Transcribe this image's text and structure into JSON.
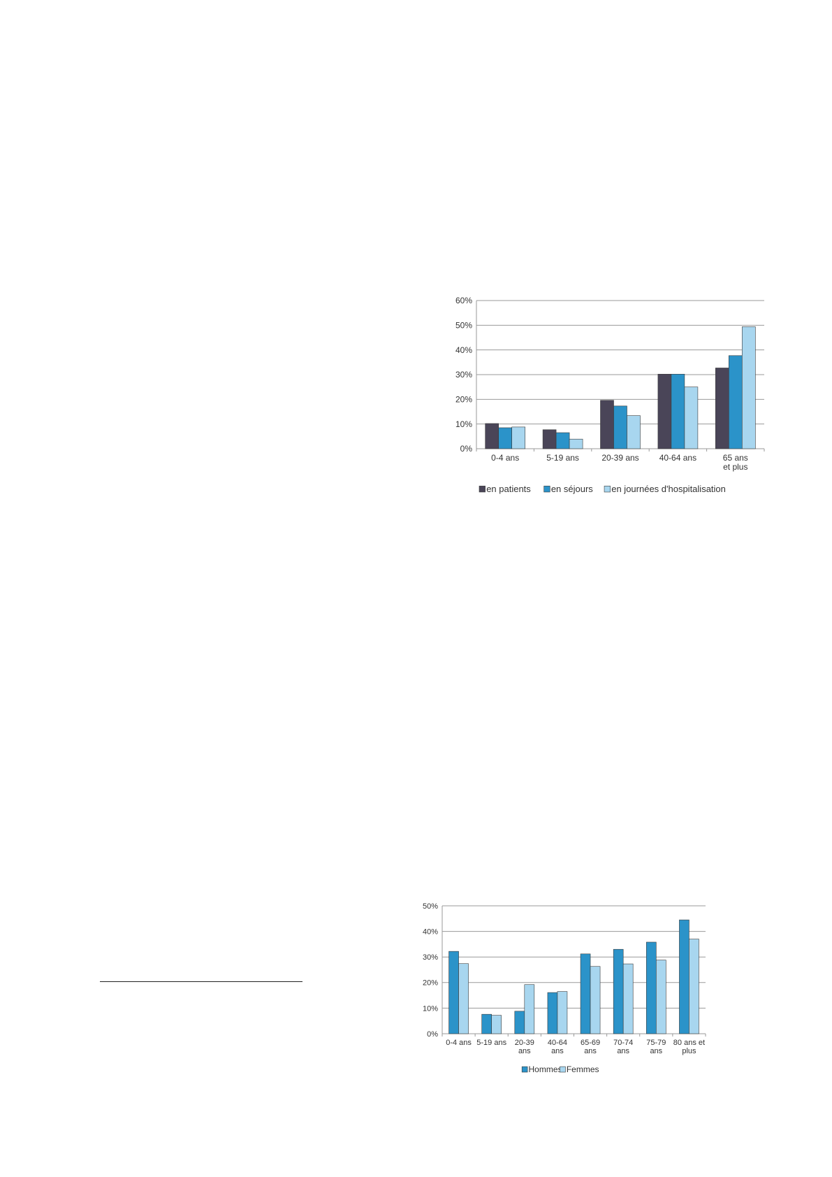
{
  "chart_data": [
    {
      "type": "bar",
      "categories": [
        [
          "0-4 ans"
        ],
        [
          "5-19 ans"
        ],
        [
          "20-39 ans"
        ],
        [
          "40-64 ans"
        ],
        [
          "65 ans",
          "et plus"
        ]
      ],
      "series": [
        {
          "name": "en patients",
          "color": "#4a4558",
          "values": [
            10.2,
            7.7,
            19.6,
            30.2,
            32.7
          ]
        },
        {
          "name": "en séjours",
          "color": "#2b93c9",
          "values": [
            8.5,
            6.5,
            17.3,
            30.2,
            37.7
          ]
        },
        {
          "name": "en journées d'hospitalisation",
          "color": "#a8d6ef",
          "values": [
            8.8,
            3.9,
            13.4,
            25.0,
            49.4
          ]
        }
      ],
      "ylim": [
        0,
        60
      ],
      "yticks": [
        0,
        10,
        20,
        30,
        40,
        50,
        60
      ],
      "ytick_labels": [
        "0%",
        "10%",
        "20%",
        "30%",
        "40%",
        "50%",
        "60%"
      ],
      "grid": true,
      "legend": "bottom"
    },
    {
      "type": "bar",
      "categories": [
        [
          "0-4 ans"
        ],
        [
          "5-19 ans"
        ],
        [
          "20-39",
          "ans"
        ],
        [
          "40-64",
          "ans"
        ],
        [
          "65-69",
          "ans"
        ],
        [
          "70-74",
          "ans"
        ],
        [
          "75-79",
          "ans"
        ],
        [
          "80 ans  et",
          "plus"
        ]
      ],
      "series": [
        {
          "name": "Hommes",
          "color": "#2b93c9",
          "values": [
            32.2,
            7.6,
            8.8,
            16.1,
            31.2,
            33.0,
            35.8,
            44.5
          ]
        },
        {
          "name": "Femmes",
          "color": "#a8d6ef",
          "values": [
            27.4,
            7.2,
            19.2,
            16.5,
            26.3,
            27.3,
            28.8,
            37.0
          ]
        }
      ],
      "ylim": [
        0,
        50
      ],
      "yticks": [
        0,
        10,
        20,
        30,
        40,
        50
      ],
      "ytick_labels": [
        "0%",
        "10%",
        "20%",
        "30%",
        "40%",
        "50%"
      ],
      "grid": true,
      "legend": "bottom"
    }
  ]
}
